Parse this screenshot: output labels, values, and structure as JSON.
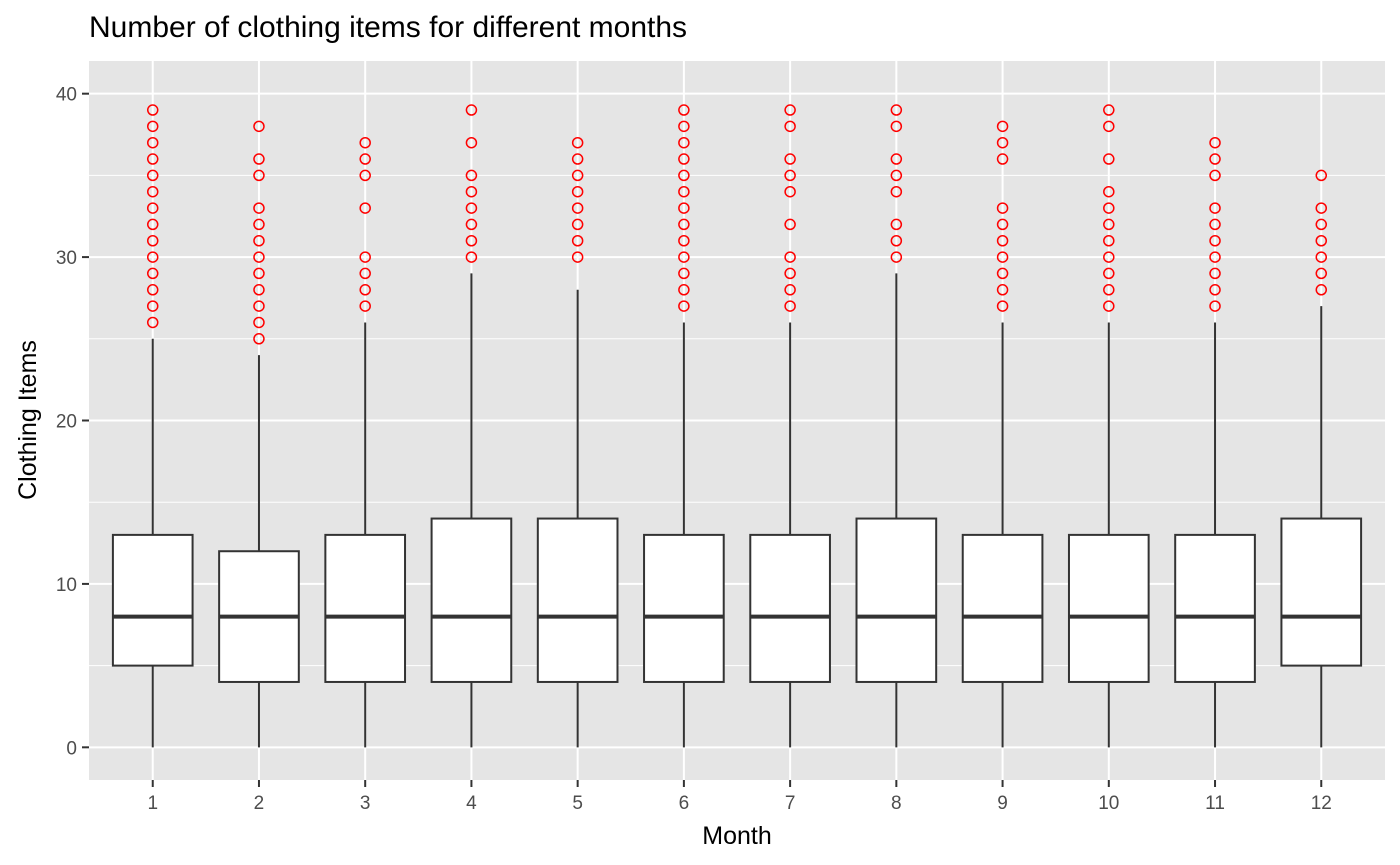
{
  "chart_data": {
    "type": "boxplot",
    "title": "Number of clothing items for different months",
    "xlabel": "Month",
    "ylabel": "Clothing Items",
    "ylim": [
      -2,
      42
    ],
    "y_ticks": [
      0,
      10,
      20,
      30,
      40
    ],
    "grid": true,
    "background_color": "#e5e5e5",
    "grid_color": "#ffffff",
    "box_fill": "#ffffff",
    "box_stroke": "#333333",
    "outlier_color": "#ff0000",
    "categories": [
      "1",
      "2",
      "3",
      "4",
      "5",
      "6",
      "7",
      "8",
      "9",
      "10",
      "11",
      "12"
    ],
    "boxes": [
      {
        "x": "1",
        "min": 0,
        "q1": 5,
        "median": 8,
        "q3": 13,
        "max": 25,
        "outliers": [
          26,
          27,
          28,
          29,
          30,
          31,
          32,
          33,
          34,
          35,
          36,
          37,
          38,
          39
        ]
      },
      {
        "x": "2",
        "min": 0,
        "q1": 4,
        "median": 8,
        "q3": 12,
        "max": 24,
        "outliers": [
          25,
          26,
          27,
          28,
          29,
          30,
          31,
          32,
          33,
          35,
          36,
          38
        ]
      },
      {
        "x": "3",
        "min": 0,
        "q1": 4,
        "median": 8,
        "q3": 13,
        "max": 26,
        "outliers": [
          27,
          28,
          29,
          30,
          33,
          35,
          36,
          37
        ]
      },
      {
        "x": "4",
        "min": 0,
        "q1": 4,
        "median": 8,
        "q3": 14,
        "max": 29,
        "outliers": [
          30,
          31,
          32,
          33,
          34,
          35,
          37,
          39
        ]
      },
      {
        "x": "5",
        "min": 0,
        "q1": 4,
        "median": 8,
        "q3": 14,
        "max": 28,
        "outliers": [
          30,
          31,
          32,
          33,
          34,
          35,
          36,
          37
        ]
      },
      {
        "x": "6",
        "min": 0,
        "q1": 4,
        "median": 8,
        "q3": 13,
        "max": 26,
        "outliers": [
          27,
          28,
          29,
          30,
          31,
          32,
          33,
          34,
          35,
          36,
          37,
          38,
          39
        ]
      },
      {
        "x": "7",
        "min": 0,
        "q1": 4,
        "median": 8,
        "q3": 13,
        "max": 26,
        "outliers": [
          27,
          28,
          29,
          30,
          32,
          34,
          35,
          36,
          38,
          39
        ]
      },
      {
        "x": "8",
        "min": 0,
        "q1": 4,
        "median": 8,
        "q3": 14,
        "max": 29,
        "outliers": [
          30,
          31,
          32,
          34,
          35,
          36,
          38,
          39
        ]
      },
      {
        "x": "9",
        "min": 0,
        "q1": 4,
        "median": 8,
        "q3": 13,
        "max": 26,
        "outliers": [
          27,
          28,
          29,
          30,
          31,
          32,
          33,
          36,
          37,
          38
        ]
      },
      {
        "x": "10",
        "min": 0,
        "q1": 4,
        "median": 8,
        "q3": 13,
        "max": 26,
        "outliers": [
          27,
          28,
          29,
          30,
          31,
          32,
          33,
          34,
          36,
          38,
          39
        ]
      },
      {
        "x": "11",
        "min": 0,
        "q1": 4,
        "median": 8,
        "q3": 13,
        "max": 26,
        "outliers": [
          27,
          28,
          29,
          30,
          31,
          32,
          33,
          35,
          36,
          37
        ]
      },
      {
        "x": "12",
        "min": 0,
        "q1": 5,
        "median": 8,
        "q3": 14,
        "max": 27,
        "outliers": [
          28,
          29,
          30,
          31,
          32,
          33,
          35
        ]
      }
    ]
  }
}
